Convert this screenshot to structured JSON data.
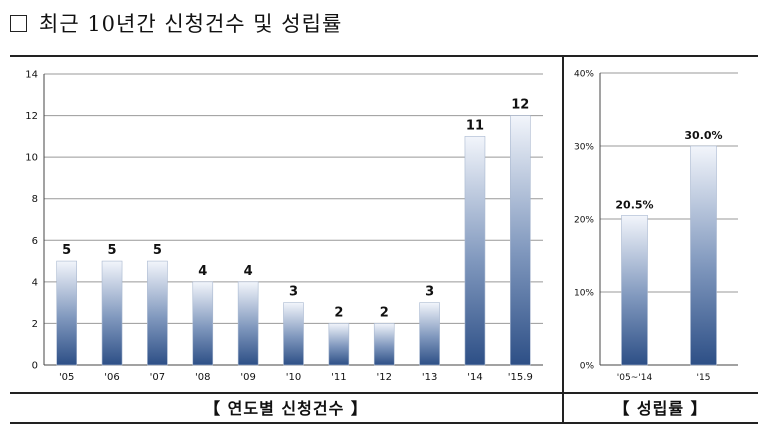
{
  "heading": {
    "text": "최근 10년간 신청건수 및 성립률"
  },
  "captions": {
    "left": "【 연도별 신청건수 】",
    "right": "【 성립률 】"
  },
  "colors": {
    "bar_top": "#f2f5fb",
    "bar_mid": "#7f97bd",
    "bar_bottom": "#2d4f86",
    "grid": "#999999"
  },
  "chart_data": [
    {
      "type": "bar",
      "title": "연도별 신청건수",
      "categories": [
        "'05",
        "'06",
        "'07",
        "'08",
        "'09",
        "'10",
        "'11",
        "'12",
        "'13",
        "'14",
        "'15.9"
      ],
      "values": [
        5,
        5,
        5,
        4,
        4,
        3,
        2,
        2,
        3,
        11,
        12
      ],
      "value_labels": [
        "5",
        "5",
        "5",
        "4",
        "4",
        "3",
        "2",
        "2",
        "3",
        "11",
        "12"
      ],
      "yticks": [
        "0",
        "2",
        "4",
        "6",
        "8",
        "10",
        "12",
        "14"
      ],
      "ylim": [
        0,
        14
      ],
      "xlabel": "",
      "ylabel": "",
      "grid": true
    },
    {
      "type": "bar",
      "title": "성립률",
      "categories": [
        "'05~'14",
        "'15"
      ],
      "values": [
        20.5,
        30.0
      ],
      "value_labels": [
        "20.5%",
        "30.0%"
      ],
      "yticks": [
        "0%",
        "10%",
        "20%",
        "30%",
        "40%"
      ],
      "ylim": [
        0,
        40
      ],
      "xlabel": "",
      "ylabel": "",
      "grid": true
    }
  ]
}
